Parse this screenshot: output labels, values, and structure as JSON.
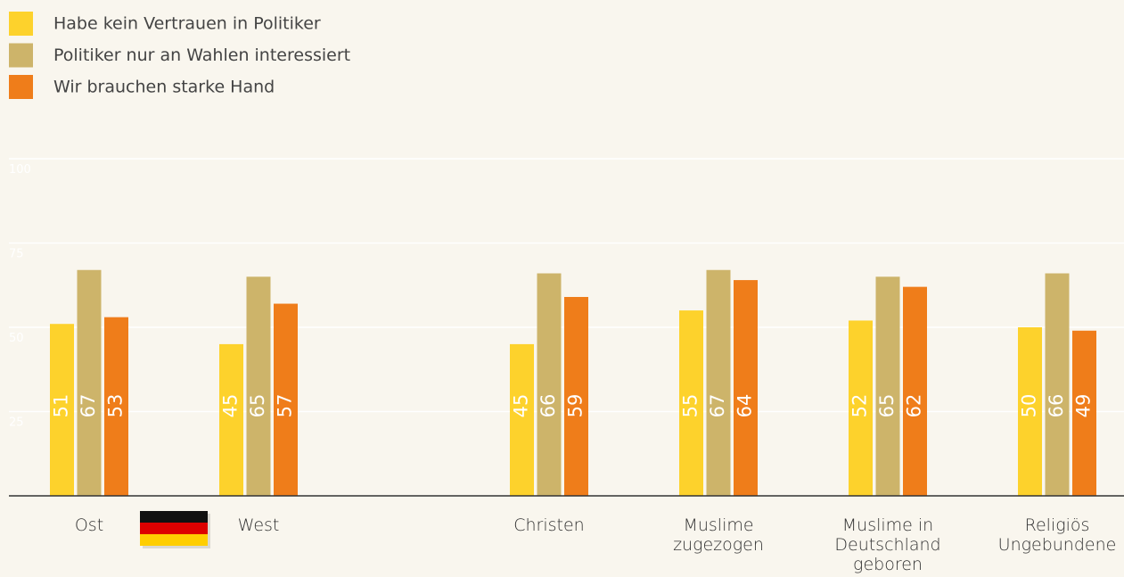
{
  "chart_data": {
    "type": "bar",
    "categories": [
      "Ost",
      "West",
      "Christen",
      "Muslime\nzugezogen",
      "Muslime in\nDeutschland\ngeboren",
      "Religiös\nUngebundene"
    ],
    "series": [
      {
        "name": "Habe kein Vertrauen in Politiker",
        "color": "#fdd22c",
        "values": [
          51,
          45,
          45,
          55,
          52,
          50
        ]
      },
      {
        "name": "Politiker nur an Wahlen interessiert",
        "color": "#cdb46a",
        "values": [
          67,
          65,
          66,
          67,
          65,
          66
        ]
      },
      {
        "name": "Wir brauchen starke Hand",
        "color": "#ef7d1a",
        "values": [
          53,
          57,
          59,
          64,
          62,
          49
        ]
      }
    ],
    "ylim": [
      0,
      100
    ],
    "yticks": [
      25,
      50,
      75,
      100
    ],
    "grid": true,
    "legend": "top-left"
  }
}
